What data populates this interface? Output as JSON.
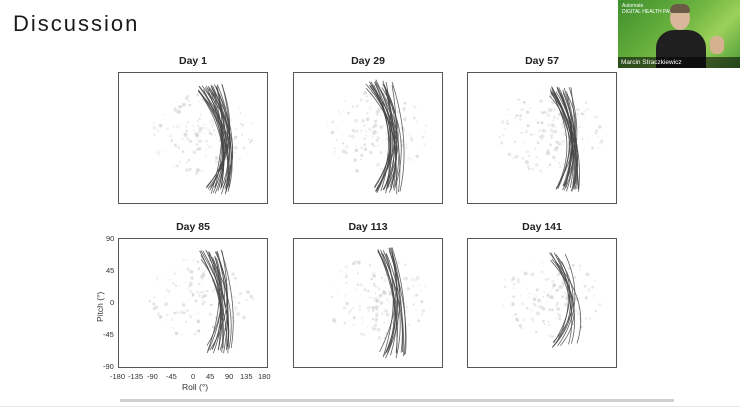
{
  "slide": {
    "title": "Discussion"
  },
  "panels": [
    {
      "title": "Day 1"
    },
    {
      "title": "Day 29"
    },
    {
      "title": "Day 57"
    },
    {
      "title": "Day 85"
    },
    {
      "title": "Day 113"
    },
    {
      "title": "Day 141"
    }
  ],
  "axes": {
    "y_title": "Pitch (°)",
    "x_title": "Roll (°)",
    "y_ticks": [
      "90",
      "45",
      "0",
      "-45",
      "-90"
    ],
    "x_ticks": [
      "-180",
      "-135",
      "-90",
      "-45",
      "0",
      "45",
      "90",
      "135",
      "180"
    ]
  },
  "video": {
    "brand_line1": "Automate",
    "brand_line2": "DIGITAL HEALTH PARTNERS",
    "name": "Marcin Straczkiewicz"
  },
  "colors": {
    "trace": "#444444",
    "video_green": "#6cb33f"
  }
}
